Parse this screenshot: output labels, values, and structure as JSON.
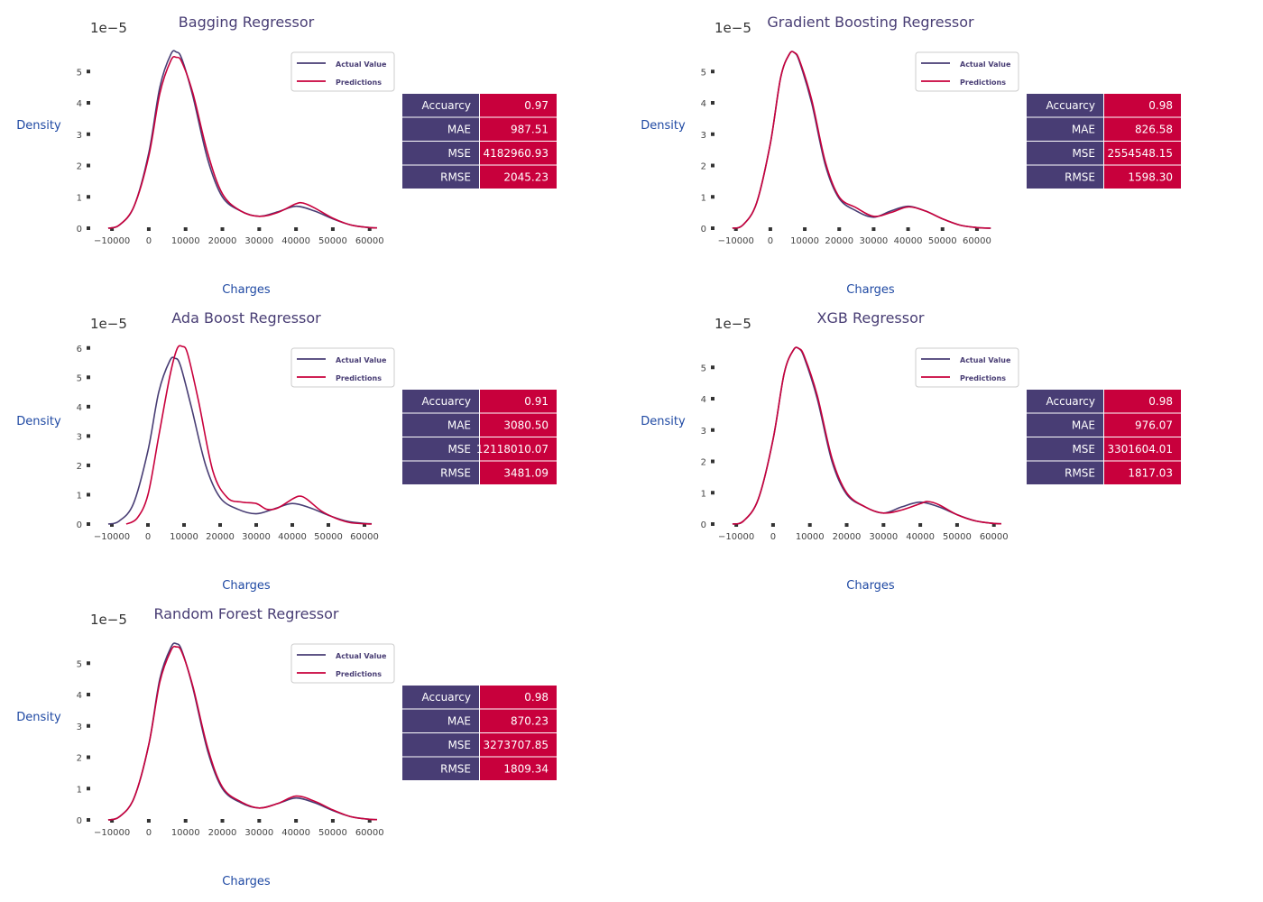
{
  "colors": {
    "actual": "#483D74",
    "predictions": "#C8003C",
    "title": "#483D74",
    "axis_label": "#1F49A3"
  },
  "chart_data": [
    {
      "type": "line",
      "title": "Bagging Regressor",
      "xlabel": "Charges",
      "ylabel": "Density",
      "scale_label": "1e−5",
      "x_ticks": [
        "−10000",
        "0",
        "10000",
        "20000",
        "30000",
        "40000",
        "50000",
        "60000"
      ],
      "y_ticks": [
        "0",
        "1",
        "2",
        "3",
        "4",
        "5"
      ],
      "xlim": [
        -11500,
        63500
      ],
      "ylim": [
        0,
        5.9
      ],
      "legend": [
        "Actual Value",
        "Predictions"
      ],
      "legend_loc": "upper right",
      "series": [
        {
          "name": "Actual Value",
          "x": [
            -11000,
            -8000,
            -4000,
            0,
            3000,
            6000,
            7500,
            9000,
            12000,
            16000,
            20000,
            25000,
            30000,
            35000,
            40000,
            45000,
            50000,
            55000,
            60000,
            62000
          ],
          "y": [
            0,
            0.1,
            0.7,
            2.4,
            4.5,
            5.55,
            5.62,
            5.4,
            4.2,
            2.2,
            1.0,
            0.55,
            0.38,
            0.52,
            0.7,
            0.55,
            0.3,
            0.1,
            0.02,
            0.01
          ]
        },
        {
          "name": "Predictions",
          "x": [
            -11000,
            -8000,
            -4000,
            0,
            3000,
            6000,
            7500,
            9000,
            12000,
            16000,
            20000,
            25000,
            30000,
            35000,
            40000,
            42000,
            45000,
            50000,
            55000,
            60000,
            62000
          ],
          "y": [
            0,
            0.1,
            0.7,
            2.3,
            4.3,
            5.35,
            5.45,
            5.3,
            4.3,
            2.4,
            1.1,
            0.55,
            0.38,
            0.5,
            0.78,
            0.8,
            0.65,
            0.32,
            0.1,
            0.02,
            0.01
          ]
        }
      ],
      "metrics": [
        {
          "label": "Accuarcy",
          "value": "0.97"
        },
        {
          "label": "MAE",
          "value": "987.51"
        },
        {
          "label": "MSE",
          "value": "4182960.93"
        },
        {
          "label": "RMSE",
          "value": "2045.23"
        }
      ]
    },
    {
      "type": "line",
      "title": "Gradient Boosting Regressor",
      "xlabel": "Charges",
      "ylabel": "Density",
      "scale_label": "1e−5",
      "x_ticks": [
        "−10000",
        "0",
        "10000",
        "20000",
        "30000",
        "40000",
        "50000",
        "60000"
      ],
      "y_ticks": [
        "0",
        "1",
        "2",
        "3",
        "4",
        "5"
      ],
      "xlim": [
        -11500,
        65000
      ],
      "ylim": [
        0,
        5.9
      ],
      "legend": [
        "Actual Value",
        "Predictions"
      ],
      "legend_loc": "upper right",
      "series": [
        {
          "name": "Actual Value",
          "x": [
            -11000,
            -8000,
            -4000,
            0,
            3000,
            5500,
            7000,
            8500,
            12000,
            16000,
            20000,
            25000,
            30000,
            35000,
            40000,
            45000,
            50000,
            55000,
            60000,
            64000
          ],
          "y": [
            0,
            0.1,
            0.8,
            2.7,
            4.8,
            5.55,
            5.6,
            5.3,
            4.0,
            2.0,
            0.95,
            0.55,
            0.35,
            0.55,
            0.7,
            0.55,
            0.3,
            0.1,
            0.02,
            0.0
          ]
        },
        {
          "name": "Predictions",
          "x": [
            -11000,
            -8000,
            -4000,
            0,
            3000,
            5500,
            7000,
            8500,
            12000,
            16000,
            20000,
            25000,
            30000,
            35000,
            40000,
            45000,
            50000,
            55000,
            60000,
            64000
          ],
          "y": [
            0,
            0.1,
            0.8,
            2.7,
            4.8,
            5.55,
            5.6,
            5.35,
            4.1,
            2.1,
            1.0,
            0.65,
            0.38,
            0.5,
            0.68,
            0.55,
            0.3,
            0.1,
            0.02,
            0.0
          ]
        }
      ],
      "metrics": [
        {
          "label": "Accuarcy",
          "value": "0.98"
        },
        {
          "label": "MAE",
          "value": "826.58"
        },
        {
          "label": "MSE",
          "value": "2554548.15"
        },
        {
          "label": "RMSE",
          "value": "1598.30"
        }
      ]
    },
    {
      "type": "line",
      "title": "Ada Boost Regressor",
      "xlabel": "Charges",
      "ylabel": "Density",
      "scale_label": "1e−5",
      "x_ticks": [
        "−10000",
        "0",
        "10000",
        "20000",
        "30000",
        "40000",
        "50000",
        "60000"
      ],
      "y_ticks": [
        "0",
        "1",
        "2",
        "3",
        "4",
        "5",
        "6"
      ],
      "xlim": [
        -11500,
        63500
      ],
      "ylim": [
        0,
        6.3
      ],
      "legend": [
        "Actual Value",
        "Predictions"
      ],
      "legend_loc": "upper right",
      "series": [
        {
          "name": "Actual Value",
          "x": [
            -11000,
            -8000,
            -4000,
            0,
            3000,
            6000,
            7500,
            9000,
            12000,
            16000,
            20000,
            25000,
            30000,
            35000,
            40000,
            45000,
            50000,
            55000,
            60000,
            62000
          ],
          "y": [
            0,
            0.1,
            0.7,
            2.5,
            4.5,
            5.55,
            5.65,
            5.4,
            4.0,
            2.0,
            0.9,
            0.5,
            0.35,
            0.52,
            0.7,
            0.55,
            0.3,
            0.1,
            0.02,
            0.01
          ]
        },
        {
          "name": "Predictions",
          "x": [
            -6000,
            -3000,
            0,
            3000,
            6000,
            8000,
            9500,
            11000,
            14000,
            18000,
            22000,
            26000,
            30000,
            33000,
            36000,
            40000,
            42000,
            44000,
            48000,
            52000,
            56000,
            60000,
            62000
          ],
          "y": [
            0,
            0.2,
            1.0,
            3.0,
            5.0,
            5.95,
            6.05,
            5.8,
            4.2,
            1.8,
            0.9,
            0.75,
            0.7,
            0.5,
            0.55,
            0.85,
            0.95,
            0.85,
            0.45,
            0.2,
            0.05,
            0.01,
            0.0
          ]
        }
      ],
      "metrics": [
        {
          "label": "Accuarcy",
          "value": "0.91"
        },
        {
          "label": "MAE",
          "value": "3080.50"
        },
        {
          "label": "MSE",
          "value": "12118010.07"
        },
        {
          "label": "RMSE",
          "value": "3481.09"
        }
      ]
    },
    {
      "type": "line",
      "title": "XGB Regressor",
      "xlabel": "Charges",
      "ylabel": "Density",
      "scale_label": "1e−5",
      "x_ticks": [
        "−10000",
        "0",
        "10000",
        "20000",
        "30000",
        "40000",
        "50000",
        "60000"
      ],
      "y_ticks": [
        "0",
        "1",
        "2",
        "3",
        "4",
        "5"
      ],
      "xlim": [
        -11500,
        63500
      ],
      "ylim": [
        0,
        5.9
      ],
      "legend": [
        "Actual Value",
        "Predictions"
      ],
      "legend_loc": "upper right",
      "series": [
        {
          "name": "Actual Value",
          "x": [
            -11000,
            -8000,
            -4000,
            0,
            3000,
            5500,
            7000,
            8500,
            12000,
            16000,
            20000,
            25000,
            30000,
            35000,
            40000,
            45000,
            50000,
            55000,
            60000,
            62000
          ],
          "y": [
            0,
            0.1,
            0.8,
            2.7,
            4.8,
            5.55,
            5.6,
            5.3,
            4.0,
            2.0,
            0.95,
            0.55,
            0.35,
            0.55,
            0.7,
            0.55,
            0.3,
            0.1,
            0.02,
            0.01
          ]
        },
        {
          "name": "Predictions",
          "x": [
            -11000,
            -8000,
            -4000,
            0,
            3000,
            5500,
            7000,
            8500,
            12000,
            16000,
            20000,
            25000,
            30000,
            35000,
            40000,
            42000,
            45000,
            50000,
            55000,
            60000,
            62000
          ],
          "y": [
            0,
            0.1,
            0.8,
            2.7,
            4.8,
            5.55,
            5.6,
            5.35,
            4.1,
            2.1,
            1.0,
            0.55,
            0.35,
            0.45,
            0.65,
            0.72,
            0.62,
            0.3,
            0.1,
            0.02,
            0.01
          ]
        }
      ],
      "metrics": [
        {
          "label": "Accuarcy",
          "value": "0.98"
        },
        {
          "label": "MAE",
          "value": "976.07"
        },
        {
          "label": "MSE",
          "value": "3301604.01"
        },
        {
          "label": "RMSE",
          "value": "1817.03"
        }
      ]
    },
    {
      "type": "line",
      "title": "Random Forest Regressor",
      "xlabel": "Charges",
      "ylabel": "Density",
      "scale_label": "1e−5",
      "x_ticks": [
        "−10000",
        "0",
        "10000",
        "20000",
        "30000",
        "40000",
        "50000",
        "60000"
      ],
      "y_ticks": [
        "0",
        "1",
        "2",
        "3",
        "4",
        "5"
      ],
      "xlim": [
        -11500,
        63500
      ],
      "ylim": [
        0,
        5.9
      ],
      "legend": [
        "Actual Value",
        "Predictions"
      ],
      "legend_loc": "upper right",
      "series": [
        {
          "name": "Actual Value",
          "x": [
            -11000,
            -8000,
            -4000,
            0,
            3000,
            6000,
            7500,
            9000,
            12000,
            16000,
            20000,
            25000,
            30000,
            35000,
            40000,
            45000,
            50000,
            55000,
            60000,
            62000
          ],
          "y": [
            0,
            0.1,
            0.7,
            2.4,
            4.5,
            5.5,
            5.62,
            5.4,
            4.2,
            2.2,
            1.0,
            0.55,
            0.38,
            0.52,
            0.7,
            0.55,
            0.3,
            0.1,
            0.02,
            0.01
          ]
        },
        {
          "name": "Predictions",
          "x": [
            -11000,
            -8000,
            -4000,
            0,
            3000,
            6000,
            7500,
            9000,
            12000,
            16000,
            20000,
            25000,
            30000,
            35000,
            40000,
            45000,
            50000,
            55000,
            60000,
            62000
          ],
          "y": [
            0,
            0.1,
            0.7,
            2.4,
            4.4,
            5.4,
            5.52,
            5.35,
            4.25,
            2.3,
            1.05,
            0.58,
            0.38,
            0.52,
            0.76,
            0.6,
            0.32,
            0.1,
            0.02,
            0.01
          ]
        }
      ],
      "metrics": [
        {
          "label": "Accuarcy",
          "value": "0.98"
        },
        {
          "label": "MAE",
          "value": "870.23"
        },
        {
          "label": "MSE",
          "value": "3273707.85"
        },
        {
          "label": "RMSE",
          "value": "1809.34"
        }
      ]
    }
  ]
}
